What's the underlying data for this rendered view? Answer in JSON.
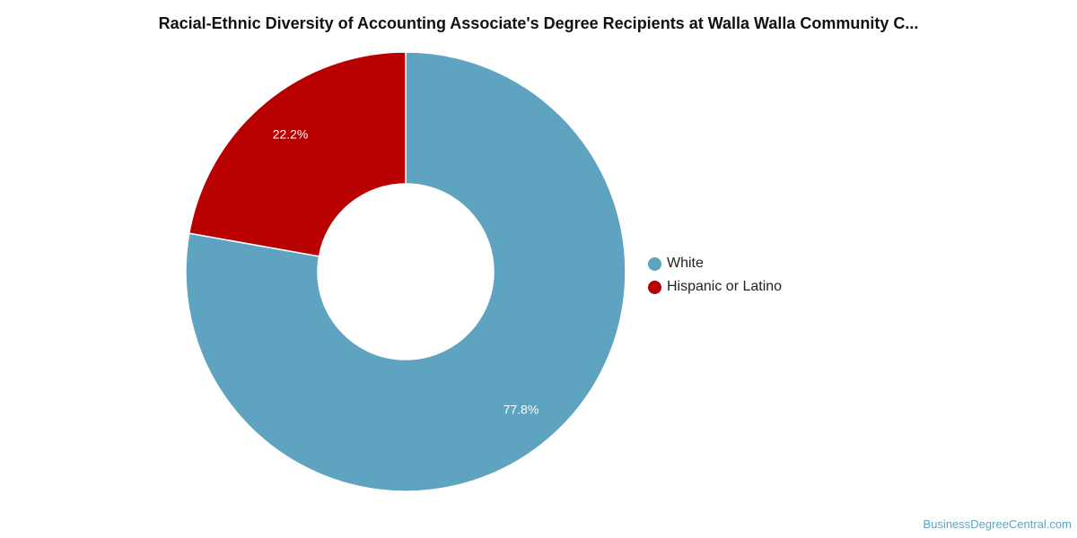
{
  "chart_data": {
    "type": "pie",
    "variant": "donut",
    "title": "Racial-Ethnic Diversity of Accounting Associate's Degree Recipients at Walla Walla Community C...",
    "slices": [
      {
        "label": "White",
        "value": 77.8,
        "display": "77.8%",
        "color": "#5ea3bf"
      },
      {
        "label": "Hispanic or Latino",
        "value": 22.2,
        "display": "22.2%",
        "color": "#b90000"
      }
    ],
    "legend_position": "right"
  },
  "watermark": "BusinessDegreeCentral.com"
}
